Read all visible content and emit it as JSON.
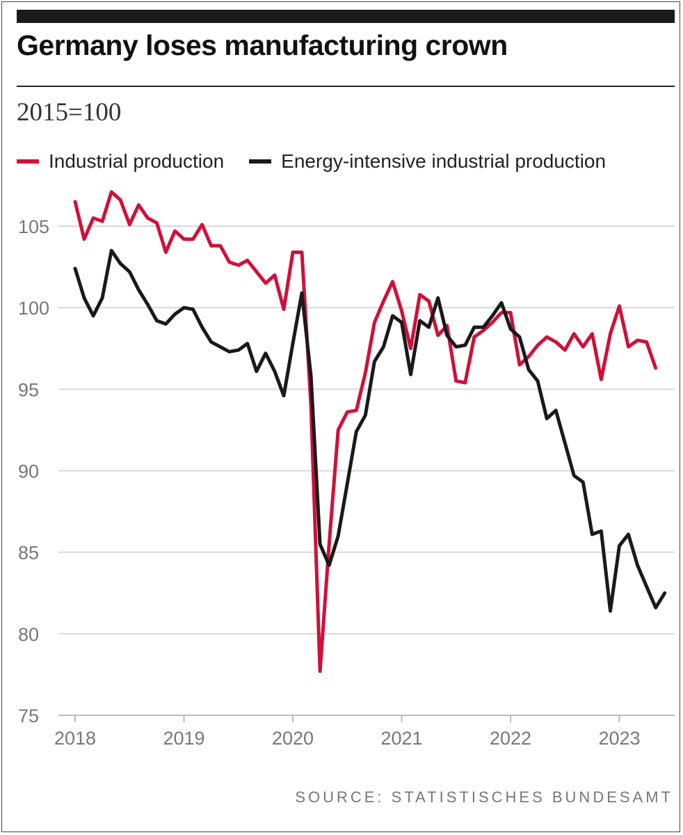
{
  "title": "Germany loses manufacturing crown",
  "subtitle": "2015=100",
  "legend": [
    {
      "label": "Industrial production",
      "color": "#d0103a"
    },
    {
      "label": "Energy-intensive industrial production",
      "color": "#1a1a1a"
    }
  ],
  "source": "SOURCE: STATISTISCHES BUNDESAMT",
  "chart_data": {
    "type": "line",
    "title": "Germany loses manufacturing crown",
    "subtitle": "2015=100",
    "ylim": [
      75,
      108
    ],
    "yticks": [
      75,
      80,
      85,
      90,
      95,
      100,
      105
    ],
    "xlim": [
      2018,
      2023.5
    ],
    "xticks": [
      2018,
      2019,
      2020,
      2021,
      2022,
      2023
    ],
    "grid": true,
    "legend_position": "top-left",
    "x_start": "2018-01",
    "x_step": "month",
    "series": [
      {
        "name": "Industrial production",
        "color": "#d0103a",
        "values": [
          106.5,
          104.2,
          105.5,
          105.3,
          107.1,
          106.6,
          105.1,
          106.3,
          105.5,
          105.2,
          103.4,
          104.7,
          104.2,
          104.2,
          105.1,
          103.8,
          103.8,
          102.8,
          102.6,
          102.9,
          102.2,
          101.5,
          102.0,
          99.9,
          103.4,
          103.4,
          94.0,
          77.7,
          85.5,
          92.5,
          93.6,
          93.7,
          96.0,
          99.1,
          100.4,
          101.6,
          99.8,
          97.5,
          100.8,
          100.4,
          98.3,
          98.9,
          95.5,
          95.4,
          98.2,
          98.6,
          99.1,
          99.7,
          99.7,
          96.5,
          97.0,
          97.7,
          98.2,
          97.9,
          97.4,
          98.4,
          97.6,
          98.4,
          95.6,
          98.4,
          100.1,
          97.6,
          98.0,
          97.9,
          96.3
        ]
      },
      {
        "name": "Energy-intensive industrial production",
        "color": "#1a1a1a",
        "values": [
          102.4,
          100.6,
          99.5,
          100.6,
          103.5,
          102.7,
          102.2,
          101.1,
          100.2,
          99.2,
          99.0,
          99.6,
          100.0,
          99.9,
          98.8,
          97.9,
          97.6,
          97.3,
          97.4,
          97.8,
          96.1,
          97.2,
          96.1,
          94.6,
          97.8,
          100.9,
          95.8,
          85.5,
          84.2,
          86.0,
          89.2,
          92.4,
          93.4,
          96.7,
          97.6,
          99.5,
          99.1,
          95.9,
          99.2,
          98.8,
          100.6,
          98.3,
          97.6,
          97.7,
          98.8,
          98.8,
          99.5,
          100.3,
          98.7,
          98.2,
          96.2,
          95.5,
          93.2,
          93.7,
          91.7,
          89.7,
          89.3,
          86.1,
          86.3,
          81.4,
          85.4,
          86.1,
          84.2,
          82.9,
          81.6,
          82.5
        ]
      }
    ]
  }
}
